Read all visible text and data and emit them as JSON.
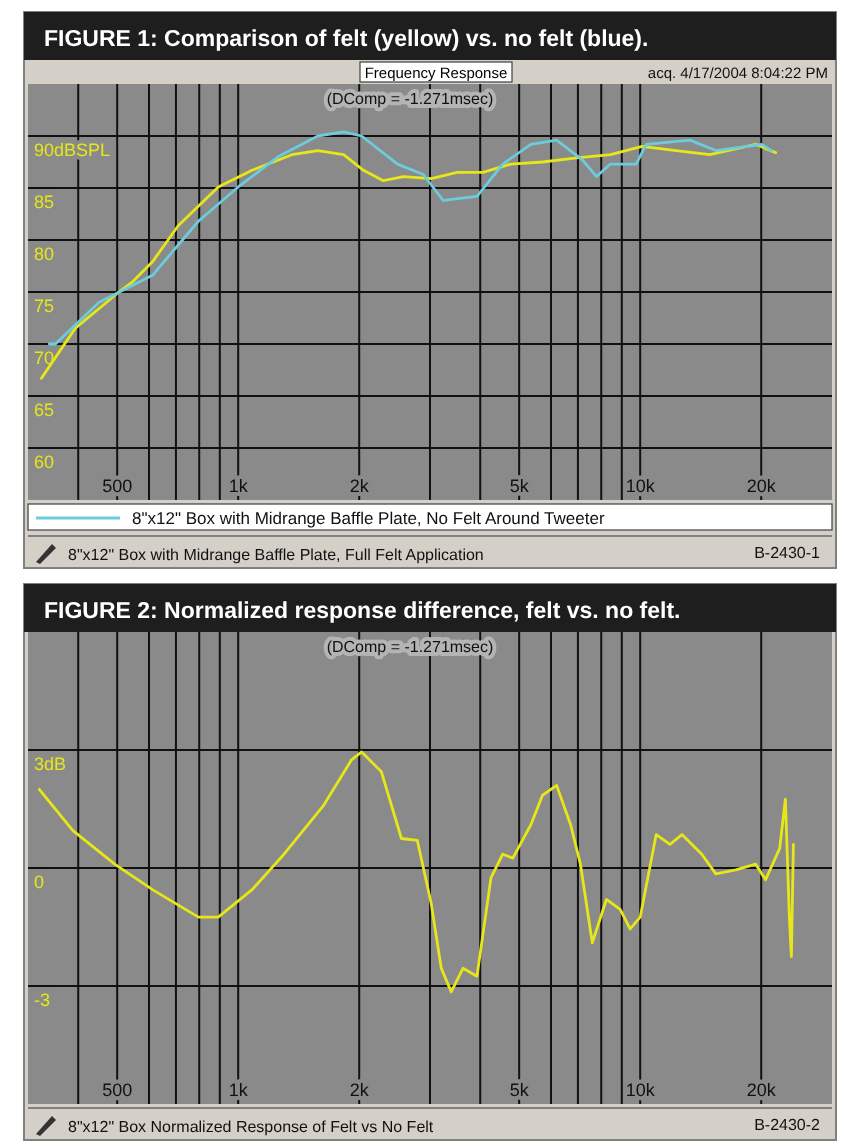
{
  "chart_data": [
    {
      "type": "line",
      "title": "FIGURE 1: Comparison of felt (yellow) vs. no felt (blue).",
      "subtitle": "Frequency Response",
      "log": "x",
      "grid": true,
      "legend": "bottom",
      "xlim": [
        300,
        30000
      ],
      "ylim": [
        55,
        95
      ],
      "xticks": [
        {
          "value": 400,
          "label": null
        },
        {
          "value": 500,
          "label": "500"
        },
        {
          "value": 600,
          "label": null
        },
        {
          "value": 700,
          "label": null
        },
        {
          "value": 800,
          "label": null
        },
        {
          "value": 900,
          "label": null
        },
        {
          "value": 1000,
          "label": "1k"
        },
        {
          "value": 2000,
          "label": "2k"
        },
        {
          "value": 3000,
          "label": null
        },
        {
          "value": 4000,
          "label": null
        },
        {
          "value": 5000,
          "label": "5k"
        },
        {
          "value": 6000,
          "label": null
        },
        {
          "value": 7000,
          "label": null
        },
        {
          "value": 8000,
          "label": null
        },
        {
          "value": 9000,
          "label": null
        },
        {
          "value": 10000,
          "label": "10k"
        },
        {
          "value": 20000,
          "label": "20k"
        }
      ],
      "yticks": [
        60,
        65,
        70,
        75,
        80,
        85,
        {
          "value": 90,
          "label": "90dBSPL"
        }
      ],
      "series": [
        {
          "color": "#e6e619",
          "x": [
            324,
            393,
            505,
            547,
            612,
            710,
            892,
            1083,
            1360,
            1578,
            1829,
            2050,
            2296,
            2576,
            3020,
            3506,
            4064,
            4766,
            5715,
            6947,
            8435,
            10115,
            12280,
            14900,
            19370,
            21720
          ],
          "values": [
            66.7,
            71.5,
            75.0,
            76.0,
            77.9,
            81.4,
            85.1,
            86.7,
            88.2,
            88.6,
            88.2,
            86.7,
            85.7,
            86.1,
            85.9,
            86.5,
            86.5,
            87.3,
            87.5,
            87.9,
            88.2,
            89.0,
            88.6,
            88.2,
            89.2,
            88.4
          ]
        },
        {
          "name": "8\"x12\" Box with Midrange Baffle Plate, No Felt Around Tweeter",
          "color": "#6ccbdc",
          "x": [
            339,
            351,
            450,
            612,
            796,
            1000,
            1256,
            1578,
            1829,
            2028,
            2490,
            2886,
            3236,
            3926,
            4550,
            5346,
            6196,
            7180,
            7786,
            8435,
            9772,
            10350,
            13300,
            15420,
            20050,
            21220
          ],
          "values": [
            70.0,
            70.0,
            74.0,
            76.6,
            81.8,
            85.1,
            88.0,
            90.0,
            90.4,
            90.0,
            87.3,
            86.3,
            83.8,
            84.2,
            87.3,
            89.2,
            89.6,
            87.7,
            86.1,
            87.3,
            87.3,
            89.2,
            89.6,
            88.6,
            89.2,
            88.6
          ]
        }
      ],
      "annotations": [
        "(DComp = -1.271msec)",
        "acq. 4/17/2004 8:04:22 PM",
        "8\"x12\" Box with Midrange Baffle Plate, Full Felt Application",
        "B-2430-1"
      ]
    },
    {
      "type": "line",
      "title": "FIGURE 2: Normalized response difference, felt vs. no felt.",
      "log": "x",
      "grid": true,
      "xlim": [
        300,
        30000
      ],
      "ylim": [
        -6,
        6
      ],
      "xticks": [
        {
          "value": 400,
          "label": null
        },
        {
          "value": 500,
          "label": "500"
        },
        {
          "value": 600,
          "label": null
        },
        {
          "value": 700,
          "label": null
        },
        {
          "value": 800,
          "label": null
        },
        {
          "value": 900,
          "label": null
        },
        {
          "value": 1000,
          "label": "1k"
        },
        {
          "value": 2000,
          "label": "2k"
        },
        {
          "value": 3000,
          "label": null
        },
        {
          "value": 4000,
          "label": null
        },
        {
          "value": 5000,
          "label": "5k"
        },
        {
          "value": 6000,
          "label": null
        },
        {
          "value": 7000,
          "label": null
        },
        {
          "value": 8000,
          "label": null
        },
        {
          "value": 9000,
          "label": null
        },
        {
          "value": 10000,
          "label": "10k"
        },
        {
          "value": 20000,
          "label": "20k"
        }
      ],
      "yticks": [
        -3,
        0,
        {
          "value": 3,
          "label": "3dB"
        }
      ],
      "series": [
        {
          "color": "#e6e619",
          "x": [
            320,
            388,
            493,
            612,
            796,
            892,
            1083,
            1300,
            1633,
            1914,
            2028,
            2270,
            2547,
            2790,
            3020,
            3200,
            3388,
            3623,
            3926,
            4254,
            4550,
            4822,
            5346,
            5715,
            6196,
            6713,
            7100,
            7600,
            8240,
            8914,
            9440,
            10000,
            10960,
            11860,
            12700,
            14230,
            15420,
            17290,
            19370,
            20510,
            22230,
            22970,
            23500,
            23770,
            24050
          ],
          "values": [
            2.0,
            0.95,
            0.1,
            -0.55,
            -1.25,
            -1.25,
            -0.55,
            0.35,
            1.6,
            2.75,
            2.95,
            2.45,
            0.75,
            0.7,
            -0.9,
            -2.55,
            -3.15,
            -2.55,
            -2.75,
            -0.25,
            0.35,
            0.25,
            1.1,
            1.85,
            2.1,
            1.1,
            0.1,
            -1.9,
            -0.8,
            -1.05,
            -1.55,
            -1.25,
            0.85,
            0.6,
            0.85,
            0.35,
            -0.15,
            -0.05,
            0.1,
            -0.3,
            0.5,
            1.75,
            -1.25,
            -2.25,
            0.6
          ]
        }
      ],
      "annotations": [
        "(DComp = -1.271msec)",
        "8\"x12\" Box Normalized Response of Felt vs No Felt",
        "B-2430-2"
      ]
    }
  ]
}
